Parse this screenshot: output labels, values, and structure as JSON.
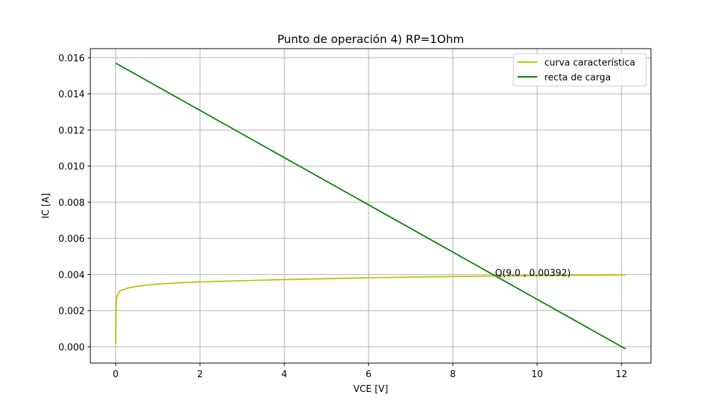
{
  "chart_data": {
    "type": "line",
    "title": "Punto de operación 4) RP=1Ohm",
    "xlabel": "VCE [V]",
    "ylabel": "IC [A]",
    "xlim": [
      -0.6,
      12.7
    ],
    "ylim": [
      -0.0009,
      0.0165
    ],
    "xticks": [
      0,
      2,
      4,
      6,
      8,
      10,
      12
    ],
    "xtick_labels": [
      "0",
      "2",
      "4",
      "6",
      "8",
      "10",
      "12"
    ],
    "yticks": [
      0.0,
      0.002,
      0.004,
      0.006,
      0.008,
      0.01,
      0.012,
      0.014,
      0.016
    ],
    "ytick_labels": [
      "0.000",
      "0.002",
      "0.004",
      "0.006",
      "0.008",
      "0.010",
      "0.012",
      "0.014",
      "0.016"
    ],
    "grid": true,
    "legend_position": "top-right",
    "series": [
      {
        "name": "curva característica",
        "color": "#bfbf00",
        "x": [
          0.0,
          0.005,
          0.01,
          0.02,
          0.05,
          0.1,
          0.2,
          0.3,
          0.5,
          0.8,
          1.0,
          1.5,
          2.0,
          3.0,
          4.0,
          5.0,
          6.0,
          7.0,
          8.0,
          9.0,
          10.0,
          11.0,
          12.1
        ],
        "y": [
          0.00015,
          0.0011,
          0.0021,
          0.0027,
          0.0029,
          0.0031,
          0.00318,
          0.00326,
          0.00335,
          0.00343,
          0.00347,
          0.00354,
          0.00359,
          0.00366,
          0.00372,
          0.00377,
          0.00382,
          0.00386,
          0.00389,
          0.00392,
          0.00394,
          0.00396,
          0.00398
        ]
      },
      {
        "name": "recta de carga",
        "color": "#008000",
        "x": [
          0.0,
          12.1
        ],
        "y": [
          0.0157,
          -0.00012
        ]
      }
    ],
    "annotations": [
      {
        "text": "Q(9.0 , 0.00392)",
        "x": 9.0,
        "y": 0.00392
      }
    ]
  }
}
